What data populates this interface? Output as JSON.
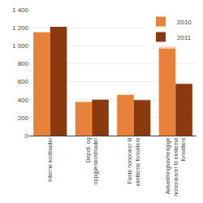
{
  "chart_data": {
    "type": "bar",
    "categories": [
      "Interne kostnader",
      "Depot- og\noppgjørskostnader",
      "Faste honorarer til\nekstterne forvaltere",
      "Avkastningsavhengige\nhonorararer til eksterne\nforvaltere"
    ],
    "series": [
      {
        "name": "2010",
        "color": "#E8813A",
        "values": [
          1150,
          375,
          455,
          990
        ]
      },
      {
        "name": "2011",
        "color": "#8B3A0F",
        "values": [
          1210,
          400,
          395,
          575
        ]
      }
    ],
    "ylim": [
      0,
      1400
    ],
    "yticks": [
      0,
      200,
      400,
      600,
      800,
      {
        "value": 1000,
        "label": "1 000"
      },
      {
        "value": 1200,
        "label": "1 200"
      },
      {
        "value": 1400,
        "label": "1 400"
      }
    ],
    "grid": true,
    "legend": "upper right"
  }
}
